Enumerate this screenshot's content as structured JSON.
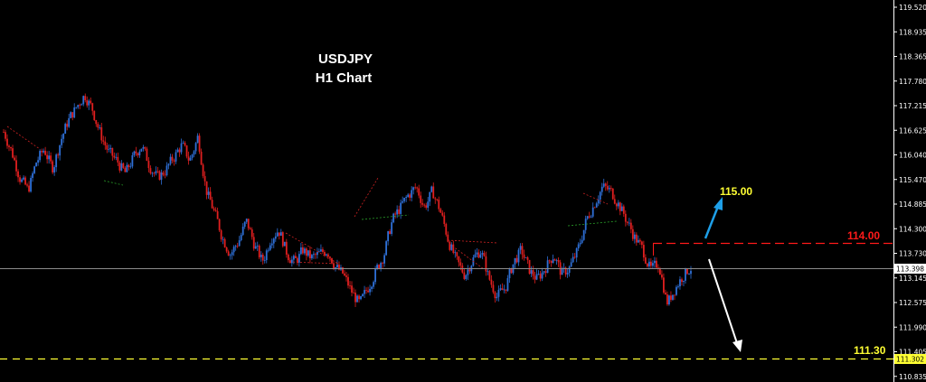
{
  "chart_data": {
    "type": "candlestick",
    "title": "USDJPY",
    "subtitle": "H1 Chart",
    "ylim": [
      110.83,
      119.66
    ],
    "y_ticks": [
      "119.520",
      "118.935",
      "118.365",
      "117.780",
      "117.215",
      "116.625",
      "116.040",
      "115.470",
      "114.885",
      "114.300",
      "113.730",
      "113.145",
      "112.575",
      "111.990",
      "111.405",
      "110.835"
    ],
    "current_price": "113.398",
    "support_price": "111.302",
    "colors": {
      "bull": "#2e6fd6",
      "bear": "#e01f1f",
      "background": "#000000",
      "axis": "#ffffff"
    },
    "close_path": [
      116.7,
      116.2,
      115.6,
      115.3,
      116.0,
      116.3,
      115.8,
      116.5,
      117.0,
      117.3,
      117.6,
      117.2,
      116.6,
      116.2,
      116.0,
      115.7,
      116.1,
      116.4,
      115.9,
      115.6,
      115.8,
      116.1,
      116.4,
      116.0,
      116.6,
      115.3,
      114.8,
      114.2,
      113.8,
      114.1,
      114.6,
      114.0,
      113.6,
      114.2,
      114.4,
      113.8,
      113.6,
      113.9,
      113.7,
      113.8,
      113.9,
      113.5,
      113.3,
      112.9,
      112.6,
      113.0,
      113.4,
      113.8,
      114.6,
      114.9,
      115.2,
      115.4,
      114.9,
      115.3,
      114.8,
      114.1,
      113.6,
      113.3,
      113.7,
      113.9,
      113.2,
      112.8,
      113.0,
      113.6,
      113.9,
      113.4,
      113.2,
      113.5,
      113.8,
      113.3,
      113.5,
      113.9,
      114.6,
      115.0,
      115.4,
      115.3,
      115.0,
      114.6,
      114.2,
      113.9,
      113.4,
      113.6,
      112.6,
      113.0,
      113.3,
      113.5
    ],
    "annotations": [
      {
        "label": "115.00",
        "color": "#ffff33",
        "direction": "up",
        "arrow_color": "#1e9fe8"
      },
      {
        "label": "114.00",
        "color": "#ff1a1a",
        "value": 114.0,
        "line_color": "#ff1a1a"
      },
      {
        "label": "111.30",
        "color": "#ffff33",
        "value": 111.3,
        "line_color": "#ffff33",
        "arrow_color": "#ffffff",
        "direction": "down"
      }
    ]
  }
}
